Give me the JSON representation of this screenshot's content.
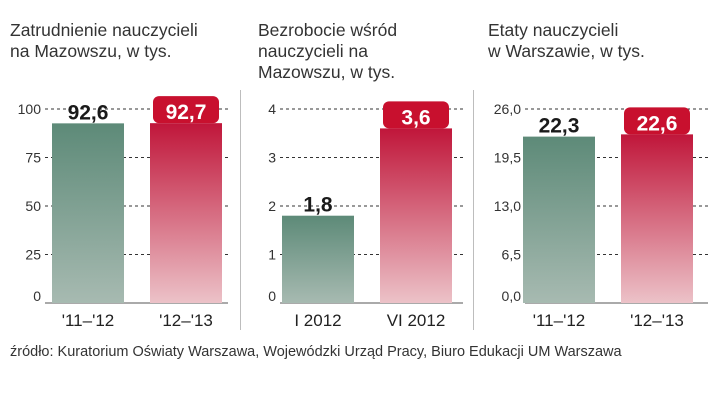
{
  "colors": {
    "prev_bar_top": "#5d8a78",
    "prev_bar_bottom": "#a7bab1",
    "curr_bar_top": "#c0163a",
    "curr_bar_bottom": "#ecc2c8",
    "curr_label_bg": "#c8102e",
    "grid": "#333333"
  },
  "chart_data": [
    {
      "type": "bar",
      "title": "Zatrudnienie nauczycieli\nna Mazowszu, w tys.",
      "categories": [
        "'11–'12",
        "'12–'13"
      ],
      "values": [
        92.6,
        92.7
      ],
      "value_labels": [
        "92,6",
        "92,7"
      ],
      "yticks": [
        "0",
        "25",
        "50",
        "75",
        "100"
      ],
      "ylim": [
        0,
        100
      ],
      "grid": true
    },
    {
      "type": "bar",
      "title": "Bezrobocie wśród\nnauczycieli na\nMazowszu, w tys.",
      "categories": [
        "I 2012",
        "VI 2012"
      ],
      "values": [
        1.8,
        3.6
      ],
      "value_labels": [
        "1,8",
        "3,6"
      ],
      "yticks": [
        "0",
        "1",
        "2",
        "3",
        "4"
      ],
      "ylim": [
        0,
        4
      ],
      "grid": true
    },
    {
      "type": "bar",
      "title": "Etaty nauczycieli\nw Warszawie, w tys.",
      "categories": [
        "'11–'12",
        "'12–'13"
      ],
      "values": [
        22.3,
        22.6
      ],
      "value_labels": [
        "22,3",
        "22,6"
      ],
      "yticks": [
        "0,0",
        "6,5",
        "13,0",
        "19,5",
        "26,0"
      ],
      "ylim": [
        0,
        26
      ],
      "grid": true
    }
  ],
  "source": "źródło: Kuratorium Oświaty Warszawa, Wojewódzki Urząd Pracy, Biuro Edukacji UM Warszawa"
}
